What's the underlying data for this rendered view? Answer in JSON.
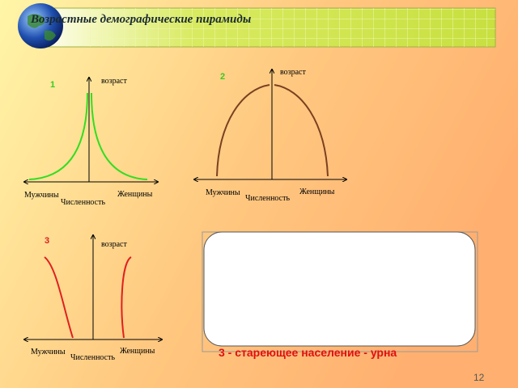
{
  "header": {
    "title": "Возрастные демографические пирамиды"
  },
  "diagrams": [
    {
      "number": "1",
      "y_label": "возраст",
      "left_label": "Мужчины",
      "right_label": "Женщины",
      "x_label": "Численность"
    },
    {
      "number": "2",
      "y_label": "возраст",
      "left_label": "Мужчины",
      "right_label": "Женщины",
      "x_label": "Численность"
    },
    {
      "number": "3",
      "y_label": "возраст",
      "left_label": "Мужчины",
      "right_label": "Женщины",
      "x_label": "Численность"
    }
  ],
  "caption": "3 - стареющее население - урна",
  "page_number": "12"
}
